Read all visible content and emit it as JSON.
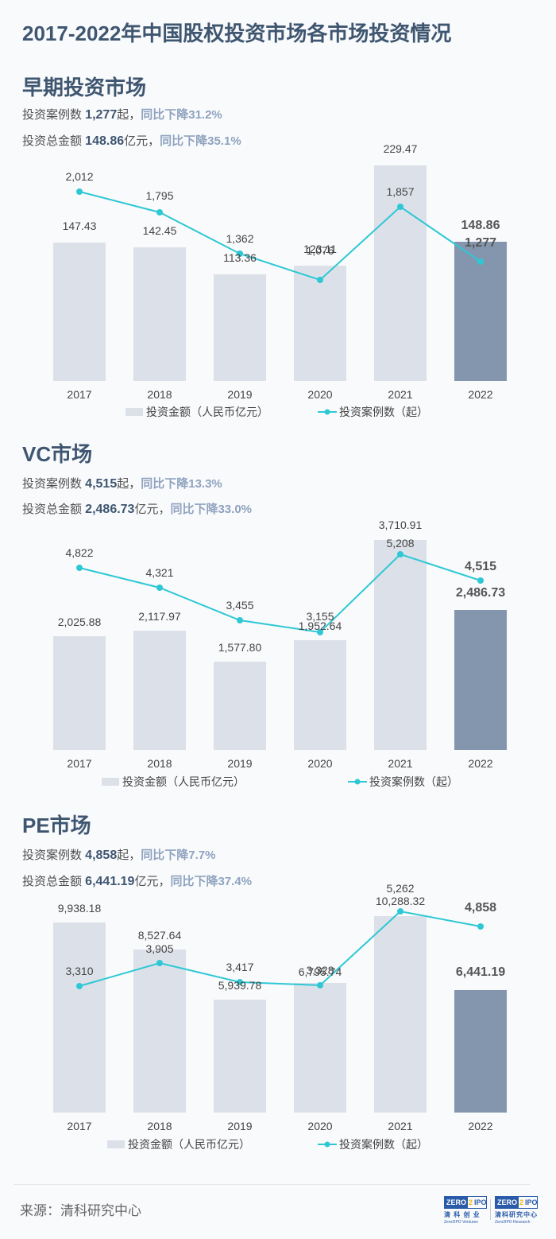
{
  "page": {
    "title": "2017-2022年中国股权投资市场各市场投资情况",
    "source": "来源：清科研究中心",
    "logos": [
      {
        "badge_left": "ZERO",
        "badge_mid": "2",
        "badge_right": "IPO",
        "cn": "清 科 创 业",
        "en": "Zero2IPO Ventures"
      },
      {
        "badge_left": "ZERO",
        "badge_mid": "2",
        "badge_right": "IPO",
        "cn": "清科研究中心",
        "en": "Zero2IPO Research"
      }
    ]
  },
  "colors": {
    "title": "#3f5670",
    "bar": "#dce1e9",
    "bar_highlight": "#8496ae",
    "line": "#2ec8d4",
    "change": "#8fa3bf"
  },
  "sections": [
    {
      "title": "早期投资市场",
      "cases_prefix": "投资案例数 ",
      "cases_value": "1,277",
      "cases_unit": "起，",
      "cases_change": "同比下降31.2%",
      "amount_prefix": "投资总金额 ",
      "amount_value": "148.86",
      "amount_unit": "亿元，",
      "amount_change": "同比下降35.1%"
    },
    {
      "title": "VC市场",
      "cases_prefix": "投资案例数 ",
      "cases_value": "4,515",
      "cases_unit": "起，",
      "cases_change": "同比下降13.3%",
      "amount_prefix": "投资总金额 ",
      "amount_value": "2,486.73",
      "amount_unit": "亿元，",
      "amount_change": "同比下降33.0%"
    },
    {
      "title": "PE市场",
      "cases_prefix": "投资案例数 ",
      "cases_value": "4,858",
      "cases_unit": "起，",
      "cases_change": "同比下降7.7%",
      "amount_prefix": "投资总金额 ",
      "amount_value": "6,441.19",
      "amount_unit": "亿元，",
      "amount_change": "同比下降37.4%"
    }
  ],
  "chart_data": [
    {
      "type": "bar+line",
      "title": "早期投资市场",
      "categories": [
        "2017",
        "2018",
        "2019",
        "2020",
        "2021",
        "2022"
      ],
      "series": [
        {
          "name": "投资金额（人民币亿元）",
          "type": "bar",
          "values": [
            147.43,
            142.45,
            113.36,
            123.11,
            229.47,
            148.86
          ],
          "labels": [
            "147.43",
            "142.45",
            "113.36",
            "123.11",
            "229.47",
            "148.86"
          ]
        },
        {
          "name": "投资案例数（起）",
          "type": "line",
          "values": [
            2012,
            1795,
            1362,
            1076,
            1857,
            1277
          ],
          "labels": [
            "2,012",
            "1,795",
            "1,362",
            "1,076",
            "1,857",
            "1,277"
          ]
        }
      ],
      "highlight_index": 5,
      "legend_position": "bottom",
      "grid": false
    },
    {
      "type": "bar+line",
      "title": "VC市场",
      "categories": [
        "2017",
        "2018",
        "2019",
        "2020",
        "2021",
        "2022"
      ],
      "series": [
        {
          "name": "投资金额（人民币亿元）",
          "type": "bar",
          "values": [
            2025.88,
            2117.97,
            1577.8,
            1952.64,
            3710.91,
            2486.73
          ],
          "labels": [
            "2,025.88",
            "2,117.97",
            "1,577.80",
            "1,952.64",
            "3,710.91",
            "2,486.73"
          ]
        },
        {
          "name": "投资案例数（起）",
          "type": "line",
          "values": [
            4822,
            4321,
            3455,
            3155,
            5208,
            4515
          ],
          "labels": [
            "4,822",
            "4,321",
            "3,455",
            "3,155",
            "5,208",
            "4,515"
          ]
        }
      ],
      "highlight_index": 5,
      "legend_position": "bottom",
      "grid": false
    },
    {
      "type": "bar+line",
      "title": "PE市场",
      "categories": [
        "2017",
        "2018",
        "2019",
        "2020",
        "2021",
        "2022"
      ],
      "series": [
        {
          "name": "投资金额（人民币亿元）",
          "type": "bar",
          "values": [
            9938.18,
            8527.64,
            5939.78,
            6795.74,
            10288.32,
            6441.19
          ],
          "labels": [
            "9,938.18",
            "8,527.64",
            "5,939.78",
            "6,795.74",
            "10,288.32",
            "6,441.19"
          ]
        },
        {
          "name": "投资案例数（起）",
          "type": "line",
          "values": [
            3310,
            3905,
            3417,
            3328,
            5262,
            4858
          ],
          "labels": [
            "3,310",
            "3,905",
            "3,417",
            "3,328",
            "5,262",
            "4,858"
          ]
        }
      ],
      "highlight_index": 5,
      "legend_position": "bottom",
      "grid": false
    }
  ]
}
